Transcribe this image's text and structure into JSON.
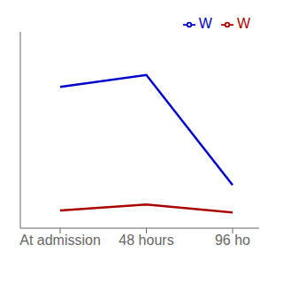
{
  "chart_data": {
    "type": "line",
    "categories": [
      "At admission",
      "48 hours",
      "96 ho"
    ],
    "series": [
      {
        "name": "W",
        "color": "#0000cc",
        "values": [
          72,
          78,
          22
        ]
      },
      {
        "name": "W",
        "color": "#aa0000",
        "values": [
          9,
          12,
          8
        ]
      }
    ],
    "ylim": [
      0,
      100
    ],
    "grid": false,
    "legend": "upper right",
    "tick_labels": "x"
  }
}
